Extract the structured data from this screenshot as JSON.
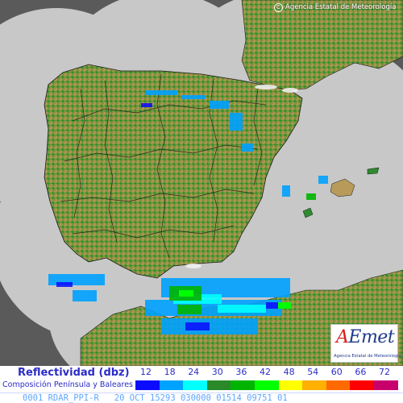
{
  "header": {
    "copyright_symbol": "C",
    "copyright_text": "Agencia Estatal de Meteorología"
  },
  "logo": {
    "mark_a": "A",
    "mark_rest": "Emet",
    "subtitle": "Agencia Estatal de Meteorología"
  },
  "legend": {
    "title": "Reflectividad (dbz)",
    "subtitle": "Composición Península y Baleares",
    "ticks": [
      "12",
      "18",
      "24",
      "30",
      "36",
      "42",
      "48",
      "54",
      "60",
      "66",
      "72"
    ],
    "colors": [
      "#0b0bff",
      "#00a2ff",
      "#00ffff",
      "#2a8a2a",
      "#00b400",
      "#00ff00",
      "#ffff00",
      "#ffb000",
      "#ff6a00",
      "#ff0000",
      "#c8006e"
    ]
  },
  "footer": {
    "status_line": "0001 RDAR_PPI-R   20 OCT 15293 030000 01514 09751 01"
  },
  "map_colors": {
    "sea": "#5a5a5a",
    "radar_coverage": "#c8c8c8",
    "lowland": "#2e8b2e",
    "midland": "#b89a5a",
    "highland": "#8a5a2a",
    "peaks": "#f0f0f0",
    "borders": "#1a1a1a"
  }
}
